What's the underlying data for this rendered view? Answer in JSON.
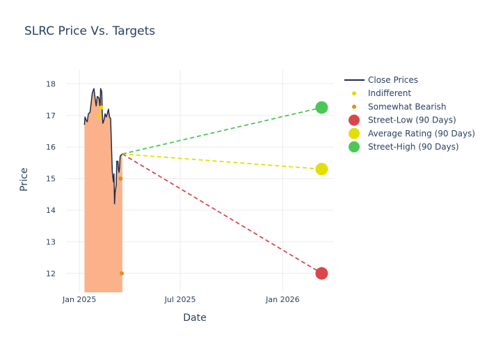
{
  "chart_data": {
    "type": "line",
    "title": "SLRC Price Vs. Targets",
    "xlabel": "Date",
    "ylabel": "Price",
    "x_range": [
      "2024-12-08",
      "2026-04-03"
    ],
    "ylim": [
      11.4,
      18.45
    ],
    "x_ticks": [
      {
        "date": "2025-01-01",
        "label": "Jan 2025"
      },
      {
        "date": "2025-07-01",
        "label": "Jul 2025"
      },
      {
        "date": "2026-01-01",
        "label": "Jan 2026"
      }
    ],
    "y_ticks": [
      12,
      13,
      14,
      15,
      16,
      17,
      18
    ],
    "grid": true,
    "legend_position": "right",
    "series": [
      {
        "name": "Close Prices",
        "kind": "line",
        "color": "#1f2a44",
        "fill_color": "#fbb28a",
        "points": [
          [
            "2025-01-10",
            16.7
          ],
          [
            "2025-01-11",
            16.95
          ],
          [
            "2025-01-13",
            16.85
          ],
          [
            "2025-01-15",
            16.8
          ],
          [
            "2025-01-17",
            17.05
          ],
          [
            "2025-01-20",
            17.1
          ],
          [
            "2025-01-22",
            17.4
          ],
          [
            "2025-01-24",
            17.7
          ],
          [
            "2025-01-27",
            17.85
          ],
          [
            "2025-01-29",
            17.55
          ],
          [
            "2025-01-31",
            17.3
          ],
          [
            "2025-02-02",
            17.6
          ],
          [
            "2025-02-05",
            17.55
          ],
          [
            "2025-02-07",
            17.25
          ],
          [
            "2025-02-08",
            17.85
          ],
          [
            "2025-02-10",
            17.75
          ],
          [
            "2025-02-11",
            17.05
          ],
          [
            "2025-02-12",
            16.75
          ],
          [
            "2025-02-14",
            16.85
          ],
          [
            "2025-02-16",
            17.05
          ],
          [
            "2025-02-18",
            16.95
          ],
          [
            "2025-02-20",
            17.05
          ],
          [
            "2025-02-22",
            17.2
          ],
          [
            "2025-02-24",
            16.95
          ],
          [
            "2025-02-26",
            16.9
          ],
          [
            "2025-02-27",
            16.3
          ],
          [
            "2025-03-01",
            15.2
          ],
          [
            "2025-03-03",
            14.9
          ],
          [
            "2025-03-04",
            15.15
          ],
          [
            "2025-03-05",
            14.2
          ],
          [
            "2025-03-06",
            14.55
          ],
          [
            "2025-03-08",
            14.8
          ],
          [
            "2025-03-09",
            15.55
          ],
          [
            "2025-03-11",
            15.55
          ],
          [
            "2025-03-12",
            15.3
          ],
          [
            "2025-03-13",
            15.2
          ],
          [
            "2025-03-14",
            15.35
          ],
          [
            "2025-03-15",
            15.7
          ],
          [
            "2025-03-17",
            15.75
          ],
          [
            "2025-03-19",
            15.78
          ]
        ]
      },
      {
        "name": "Indifferent",
        "kind": "markers",
        "color": "#e8d800",
        "points": [
          [
            "2025-02-05",
            17.0
          ],
          [
            "2025-02-09",
            17.25
          ]
        ]
      },
      {
        "name": "Somewhat Bearish",
        "kind": "markers",
        "color": "#e0901c",
        "points": [
          [
            "2025-03-16",
            15.0
          ],
          [
            "2025-03-18",
            12.0
          ]
        ]
      },
      {
        "name": "Street-Low (90 Days)",
        "kind": "target",
        "color": "#d9474c",
        "from": [
          "2025-03-19",
          15.78
        ],
        "to": [
          "2026-03-12",
          12.0
        ]
      },
      {
        "name": "Average Rating (90 Days)",
        "kind": "target",
        "color": "#e2e000",
        "from": [
          "2025-03-19",
          15.78
        ],
        "to": [
          "2026-03-12",
          15.3
        ]
      },
      {
        "name": "Street-High (90 Days)",
        "kind": "target",
        "color": "#4cc654",
        "from": [
          "2025-03-19",
          15.78
        ],
        "to": [
          "2026-03-12",
          17.25
        ]
      }
    ]
  }
}
